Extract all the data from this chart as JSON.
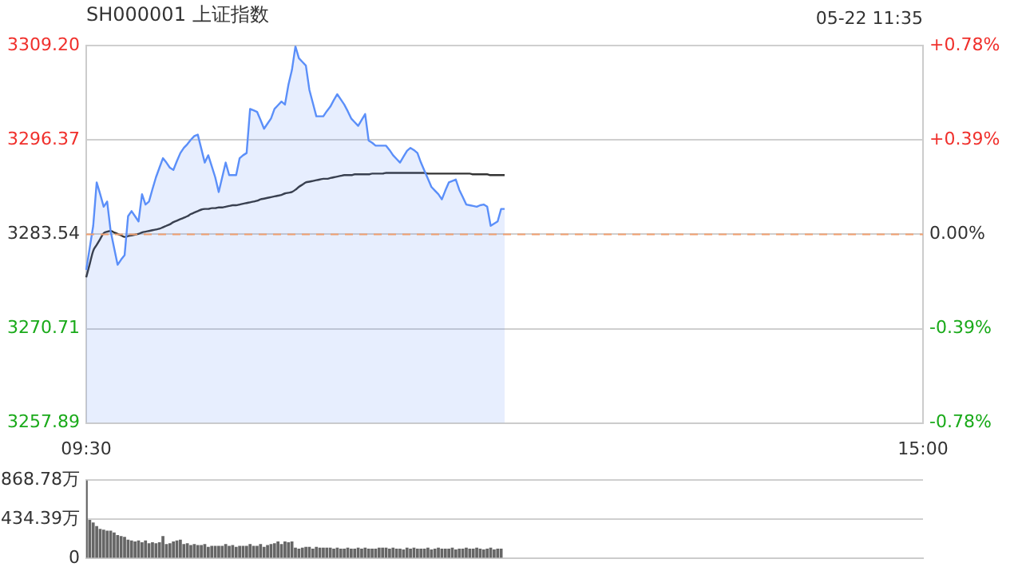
{
  "chart_data": [
    {
      "type": "area",
      "title": "SH000001 上证指数",
      "annotations": [
        "05-22 11:35"
      ],
      "categories": [
        "09:30",
        null,
        null,
        null,
        null,
        null,
        null,
        null,
        null,
        null,
        null,
        null,
        null,
        null,
        null,
        null,
        null,
        null,
        null,
        null,
        null,
        null,
        null,
        null,
        null,
        null,
        null,
        null,
        null,
        null,
        null,
        null,
        null,
        null,
        null,
        null,
        null,
        null,
        null,
        null,
        null,
        null,
        null,
        null,
        null,
        null,
        null,
        null,
        null,
        null,
        null,
        null,
        null,
        null,
        null,
        null,
        null,
        null,
        null,
        null,
        null,
        null,
        null,
        null,
        null,
        null,
        null,
        null,
        null,
        null,
        null,
        null,
        null,
        null,
        null,
        null,
        null,
        null,
        null,
        null,
        null,
        null,
        null,
        null,
        null,
        null,
        null,
        null,
        null,
        null,
        null,
        null,
        null,
        null,
        null,
        null,
        null,
        null,
        null,
        null,
        null,
        null,
        null,
        null,
        null,
        null,
        null,
        null,
        null,
        null,
        null,
        null,
        null,
        null,
        null,
        null,
        null,
        null,
        null,
        null,
        null,
        null,
        null,
        null,
        null,
        null,
        null,
        null,
        null,
        null,
        null,
        null,
        null,
        null,
        null,
        null,
        null,
        null,
        null,
        null,
        null,
        null,
        null,
        null,
        null,
        null,
        null,
        null,
        null,
        null,
        null,
        null,
        null,
        null,
        null,
        null,
        null,
        null,
        null,
        null,
        null,
        null,
        null,
        null,
        null,
        null,
        null,
        null,
        null,
        null,
        null,
        null,
        null,
        null,
        null,
        null,
        null,
        null,
        null,
        null,
        null,
        null,
        null,
        null,
        null,
        null,
        null,
        null,
        null,
        null,
        null,
        null,
        null,
        null,
        null,
        null,
        null,
        null,
        null,
        null,
        null,
        null,
        null,
        null,
        null,
        null,
        null,
        null,
        null,
        null,
        null,
        null,
        null,
        null,
        null,
        null,
        null,
        null,
        null,
        null,
        null,
        null,
        null,
        null,
        null,
        null,
        null,
        null,
        null,
        null,
        null,
        null,
        null,
        null,
        null,
        null,
        null,
        null,
        null,
        null,
        "15:00"
      ],
      "series": [
        {
          "type": "area",
          "color": "#5b8ff9",
          "values": [
            3278.7,
            3281.7,
            3284.7,
            3290.6,
            3289.0,
            3287.3,
            3288.0,
            3284.0,
            3281.7,
            3279.4,
            3280.1,
            3280.7,
            3286.0,
            3286.7,
            3286.0,
            3285.3,
            3289.0,
            3287.6,
            3288.0,
            3289.7,
            3291.3,
            3292.6,
            3293.9,
            3293.3,
            3292.6,
            3292.3,
            3293.5,
            3294.6,
            3295.3,
            3295.8,
            3296.4,
            3296.9,
            3297.1,
            3295.2,
            3293.3,
            3294.3,
            3292.8,
            3291.3,
            3289.3,
            3291.3,
            3293.3,
            3291.6,
            3291.6,
            3291.6,
            3293.9,
            3294.3,
            3294.6,
            3300.6,
            3300.4,
            3300.2,
            3299.1,
            3297.9,
            3298.6,
            3299.3,
            3300.6,
            3301.1,
            3301.6,
            3301.2,
            3303.9,
            3305.9,
            3309.1,
            3307.5,
            3307.0,
            3306.5,
            3303.2,
            3301.4,
            3299.6,
            3299.6,
            3299.6,
            3300.3,
            3300.9,
            3301.8,
            3302.6,
            3301.9,
            3301.2,
            3300.3,
            3299.3,
            3298.8,
            3298.3,
            3299.1,
            3299.9,
            3296.3,
            3296.0,
            3295.6,
            3295.6,
            3295.6,
            3295.6,
            3295.0,
            3294.3,
            3293.8,
            3293.3,
            3294.1,
            3294.9,
            3295.3,
            3295.0,
            3294.6,
            3293.3,
            3292.2,
            3291.1,
            3290.0,
            3289.5,
            3289.0,
            3288.3,
            3289.5,
            3290.6,
            3290.8,
            3291.0,
            3289.6,
            3288.6,
            3287.6,
            3287.5,
            3287.4,
            3287.3,
            3287.5,
            3287.6,
            3287.3,
            3284.7,
            3285.0,
            3285.3,
            3287.0,
            3287.0,
            null,
            null,
            null,
            null,
            null,
            null,
            null,
            null,
            null,
            null,
            null,
            null,
            null,
            null,
            null,
            null,
            null,
            null,
            null,
            null,
            null,
            null,
            null,
            null,
            null,
            null,
            null,
            null,
            null,
            null,
            null,
            null,
            null,
            null,
            null,
            null,
            null,
            null,
            null,
            null,
            null,
            null,
            null,
            null,
            null,
            null,
            null,
            null,
            null,
            null,
            null,
            null,
            null,
            null,
            null,
            null,
            null,
            null,
            null,
            null,
            null,
            null,
            null,
            null,
            null,
            null,
            null,
            null,
            null,
            null,
            null,
            null,
            null,
            null,
            null,
            null,
            null,
            null,
            null,
            null,
            null,
            null,
            null,
            null,
            null,
            null,
            null,
            null,
            null,
            null,
            null,
            null,
            null,
            null,
            null,
            null,
            null,
            null,
            null,
            null,
            null,
            null,
            null,
            null,
            null,
            null,
            null,
            null,
            null,
            null,
            null,
            null,
            null,
            null,
            null,
            null,
            null,
            null,
            null,
            null
          ]
        },
        {
          "type": "line",
          "color": "#333333",
          "values": [
            3277.7,
            3279.5,
            3281.3,
            3282.1,
            3282.9,
            3283.7,
            3283.9,
            3284.0,
            3283.8,
            3283.6,
            3283.4,
            3283.2,
            3283.3,
            3283.4,
            3283.5,
            3283.6,
            3283.8,
            3283.9,
            3284.0,
            3284.1,
            3284.2,
            3284.3,
            3284.5,
            3284.7,
            3284.9,
            3285.2,
            3285.4,
            3285.6,
            3285.8,
            3286.0,
            3286.3,
            3286.5,
            3286.7,
            3286.9,
            3287.0,
            3287.0,
            3287.1,
            3287.1,
            3287.2,
            3287.2,
            3287.3,
            3287.4,
            3287.5,
            3287.5,
            3287.6,
            3287.7,
            3287.8,
            3287.9,
            3288.0,
            3288.1,
            3288.3,
            3288.4,
            3288.5,
            3288.6,
            3288.7,
            3288.8,
            3288.9,
            3289.1,
            3289.2,
            3289.3,
            3289.6,
            3290.0,
            3290.3,
            3290.6,
            3290.7,
            3290.8,
            3290.9,
            3291.0,
            3291.1,
            3291.1,
            3291.2,
            3291.3,
            3291.4,
            3291.5,
            3291.6,
            3291.6,
            3291.6,
            3291.7,
            3291.7,
            3291.7,
            3291.7,
            3291.7,
            3291.8,
            3291.8,
            3291.8,
            3291.8,
            3291.9,
            3291.9,
            3291.9,
            3291.9,
            3291.9,
            3291.9,
            3291.9,
            3291.9,
            3291.9,
            3291.9,
            3291.9,
            3291.9,
            3291.8,
            3291.8,
            3291.8,
            3291.8,
            3291.8,
            3291.8,
            3291.8,
            3291.8,
            3291.8,
            3291.8,
            3291.8,
            3291.8,
            3291.8,
            3291.7,
            3291.7,
            3291.7,
            3291.7,
            3291.7,
            3291.6,
            3291.6,
            3291.6,
            3291.6,
            3291.6,
            null,
            null,
            null,
            null,
            null,
            null,
            null,
            null,
            null,
            null,
            null,
            null,
            null,
            null,
            null,
            null,
            null,
            null,
            null,
            null,
            null,
            null,
            null,
            null,
            null,
            null,
            null,
            null,
            null,
            null,
            null,
            null,
            null,
            null,
            null,
            null,
            null,
            null,
            null,
            null,
            null,
            null,
            null,
            null,
            null,
            null,
            null,
            null,
            null,
            null,
            null,
            null,
            null,
            null,
            null,
            null,
            null,
            null,
            null,
            null,
            null,
            null,
            null,
            null,
            null,
            null,
            null,
            null,
            null,
            null,
            null,
            null,
            null,
            null,
            null,
            null,
            null,
            null,
            null,
            null,
            null,
            null,
            null,
            null,
            null,
            null,
            null,
            null,
            null,
            null,
            null,
            null,
            null,
            null,
            null,
            null,
            null,
            null,
            null,
            null,
            null,
            null,
            null,
            null,
            null,
            null,
            null,
            null,
            null,
            null,
            null,
            null,
            null,
            null,
            null,
            null,
            null,
            null,
            null,
            null
          ]
        }
      ],
      "ylim": [
        3257.89,
        3309.2
      ],
      "yticks": [
        3257.89,
        3270.71,
        3283.54,
        3296.37,
        {
          "value": 3309.2,
          "label": "3309.20"
        }
      ],
      "y2lim": [
        -0.78,
        0.78
      ],
      "y2ticks": [
        {
          "value": -0.78,
          "label": "-0.78%"
        },
        {
          "value": -0.39,
          "label": "-0.39%"
        },
        {
          "value": 0,
          "label": "0.00%"
        },
        {
          "value": 0.39,
          "label": "+0.39%"
        },
        {
          "value": 0.78,
          "label": "+0.78%"
        }
      ],
      "ref_lines": [
        {
          "axis": "y",
          "value": 3283.54,
          "color": "#f0a070",
          "line_style": "dashed"
        }
      ],
      "grid": "y"
    },
    {
      "type": "bar",
      "color": "#666666",
      "categories": [
        null,
        null,
        null,
        null,
        null,
        null,
        null,
        null,
        null,
        null,
        null,
        null,
        null,
        null,
        null,
        null,
        null,
        null,
        null,
        null,
        null,
        null,
        null,
        null,
        null,
        null,
        null,
        null,
        null,
        null,
        null,
        null,
        null,
        null,
        null,
        null,
        null,
        null,
        null,
        null,
        null,
        null,
        null,
        null,
        null,
        null,
        null,
        null,
        null,
        null,
        null,
        null,
        null,
        null,
        null,
        null,
        null,
        null,
        null,
        null,
        null,
        null,
        null,
        null,
        null,
        null,
        null,
        null,
        null,
        null,
        null,
        null,
        null,
        null,
        null,
        null,
        null,
        null,
        null,
        null,
        null,
        null,
        null,
        null,
        null,
        null,
        null,
        null,
        null,
        null,
        null,
        null,
        null,
        null,
        null,
        null,
        null,
        null,
        null,
        null,
        null,
        null,
        null,
        null,
        null,
        null,
        null,
        null,
        null,
        null,
        null,
        null,
        null,
        null,
        null,
        null,
        null,
        null,
        null,
        null,
        null,
        null,
        null,
        null,
        null,
        null,
        null,
        null,
        null,
        null,
        null,
        null,
        null,
        null,
        null,
        null,
        null,
        null,
        null,
        null,
        null,
        null,
        null,
        null,
        null,
        null,
        null,
        null,
        null,
        null,
        null,
        null,
        null,
        null,
        null,
        null,
        null,
        null,
        null,
        null,
        null,
        null,
        null,
        null,
        null,
        null,
        null,
        null,
        null,
        null,
        null,
        null,
        null,
        null,
        null,
        null,
        null,
        null,
        null,
        null,
        null,
        null,
        null,
        null,
        null,
        null,
        null,
        null,
        null,
        null,
        null,
        null,
        null,
        null,
        null,
        null,
        null,
        null,
        null,
        null,
        null,
        null,
        null,
        null,
        null,
        null,
        null,
        null,
        null,
        null,
        null,
        null,
        null,
        null,
        null,
        null,
        null,
        null,
        null,
        null,
        null,
        null,
        null,
        null,
        null,
        null,
        null,
        null,
        null,
        null,
        null,
        null,
        null,
        null,
        null,
        null,
        null,
        null,
        null,
        null,
        null
      ],
      "values": [
        860,
        420,
        390,
        350,
        320,
        310,
        300,
        300,
        280,
        250,
        240,
        230,
        200,
        190,
        180,
        190,
        170,
        190,
        160,
        170,
        160,
        170,
        240,
        150,
        160,
        180,
        190,
        200,
        150,
        160,
        140,
        150,
        140,
        140,
        150,
        120,
        130,
        130,
        130,
        130,
        150,
        130,
        140,
        120,
        130,
        130,
        130,
        150,
        130,
        130,
        150,
        120,
        140,
        150,
        160,
        180,
        150,
        180,
        170,
        180,
        110,
        100,
        110,
        120,
        120,
        100,
        120,
        110,
        110,
        110,
        110,
        100,
        110,
        100,
        100,
        110,
        100,
        100,
        110,
        100,
        110,
        100,
        100,
        100,
        110,
        110,
        110,
        100,
        110,
        100,
        100,
        90,
        110,
        100,
        110,
        100,
        100,
        100,
        110,
        90,
        100,
        110,
        100,
        100,
        100,
        110,
        90,
        100,
        100,
        110,
        100,
        100,
        110,
        100,
        90,
        100,
        110,
        90,
        100,
        100,
        null,
        null,
        null,
        null,
        null,
        null,
        null,
        null,
        null,
        null,
        null,
        null,
        null,
        null,
        null,
        null,
        null,
        null,
        null,
        null,
        null,
        null,
        null,
        null,
        null,
        null,
        null,
        null,
        null,
        null,
        null,
        null,
        null,
        null,
        null,
        null,
        null,
        null,
        null,
        null,
        null,
        null,
        null,
        null,
        null,
        null,
        null,
        null,
        null,
        null,
        null,
        null,
        null,
        null,
        null,
        null,
        null,
        null,
        null,
        null,
        null,
        null,
        null,
        null,
        null,
        null,
        null,
        null,
        null,
        null,
        null,
        null,
        null,
        null,
        null,
        null,
        null,
        null,
        null,
        null,
        null,
        null,
        null,
        null,
        null,
        null,
        null,
        null,
        null,
        null,
        null,
        null,
        null,
        null,
        null,
        null,
        null,
        null,
        null,
        null,
        null,
        null,
        null,
        null,
        null,
        null,
        null,
        null,
        null,
        null,
        null,
        null,
        null,
        null,
        null,
        null,
        null,
        null,
        null,
        null,
        null
      ],
      "tick_labels": "y",
      "ylim": [
        0,
        868.78
      ],
      "yticks": [
        {
          "value": 0,
          "label": "0"
        },
        {
          "value": 434.39,
          "label": "434.39万"
        },
        {
          "value": 868.78,
          "label": "868.78万"
        }
      ],
      "grid": "y"
    }
  ]
}
